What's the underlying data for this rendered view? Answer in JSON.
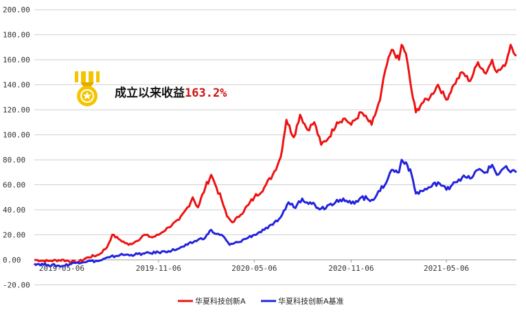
{
  "chart_data": {
    "type": "line",
    "title": "",
    "xlabel": "",
    "ylabel": "",
    "ylim": [
      -20,
      200
    ],
    "xlim": [
      "2019-03-15",
      "2021-09-16"
    ],
    "y_ticks": [
      "-20.00",
      "0.00",
      "20.00",
      "40.00",
      "60.00",
      "80.00",
      "100.00",
      "120.00",
      "140.00",
      "160.00",
      "180.00",
      "200.00"
    ],
    "x_ticks": [
      {
        "date": "2019-05-06",
        "label": "2019-05-06"
      },
      {
        "date": "2019-11-06",
        "label": "2019-11-06"
      },
      {
        "date": "2020-05-06",
        "label": "2020-05-06"
      },
      {
        "date": "2020-11-06",
        "label": "2020-11-06"
      },
      {
        "date": "2021-05-06",
        "label": "2021-05-06"
      }
    ],
    "grid": "horizontal",
    "legend_position": "bottom",
    "annotation": {
      "label": "成立以来收益",
      "value": "163.2%"
    },
    "series": [
      {
        "name": "华夏科技创新A",
        "color": "#ee1111",
        "points": [
          [
            "2019-03-15",
            0
          ],
          [
            "2019-04-10",
            -1
          ],
          [
            "2019-05-06",
            0
          ],
          [
            "2019-06-05",
            -2
          ],
          [
            "2019-06-25",
            2
          ],
          [
            "2019-07-15",
            4
          ],
          [
            "2019-07-31",
            10
          ],
          [
            "2019-08-10",
            20
          ],
          [
            "2019-08-25",
            16
          ],
          [
            "2019-09-10",
            12
          ],
          [
            "2019-09-25",
            15
          ],
          [
            "2019-10-10",
            20
          ],
          [
            "2019-10-25",
            18
          ],
          [
            "2019-11-06",
            20
          ],
          [
            "2019-11-25",
            26
          ],
          [
            "2019-12-15",
            32
          ],
          [
            "2019-12-31",
            42
          ],
          [
            "2020-01-10",
            50
          ],
          [
            "2020-01-20",
            42
          ],
          [
            "2020-02-03",
            58
          ],
          [
            "2020-02-14",
            68
          ],
          [
            "2020-02-21",
            61
          ],
          [
            "2020-03-05",
            48
          ],
          [
            "2020-03-15",
            35
          ],
          [
            "2020-03-25",
            30
          ],
          [
            "2020-04-10",
            36
          ],
          [
            "2020-04-25",
            44
          ],
          [
            "2020-05-06",
            50
          ],
          [
            "2020-05-25",
            58
          ],
          [
            "2020-06-10",
            68
          ],
          [
            "2020-06-25",
            82
          ],
          [
            "2020-07-06",
            112
          ],
          [
            "2020-07-20",
            98
          ],
          [
            "2020-08-01",
            116
          ],
          [
            "2020-08-15",
            104
          ],
          [
            "2020-08-28",
            110
          ],
          [
            "2020-09-10",
            92
          ],
          [
            "2020-09-25",
            98
          ],
          [
            "2020-10-10",
            110
          ],
          [
            "2020-10-25",
            113
          ],
          [
            "2020-11-06",
            108
          ],
          [
            "2020-11-25",
            118
          ],
          [
            "2020-12-15",
            108
          ],
          [
            "2020-12-31",
            128
          ],
          [
            "2021-01-10",
            152
          ],
          [
            "2021-01-22",
            168
          ],
          [
            "2021-02-05",
            160
          ],
          [
            "2021-02-10",
            172
          ],
          [
            "2021-02-18",
            165
          ],
          [
            "2021-03-01",
            135
          ],
          [
            "2021-03-09",
            118
          ],
          [
            "2021-03-20",
            125
          ],
          [
            "2021-04-05",
            130
          ],
          [
            "2021-04-20",
            140
          ],
          [
            "2021-05-06",
            128
          ],
          [
            "2021-05-20",
            140
          ],
          [
            "2021-06-05",
            150
          ],
          [
            "2021-06-20",
            143
          ],
          [
            "2021-07-05",
            158
          ],
          [
            "2021-07-20",
            149
          ],
          [
            "2021-08-01",
            160
          ],
          [
            "2021-08-10",
            150
          ],
          [
            "2021-08-25",
            155
          ],
          [
            "2021-09-05",
            172
          ],
          [
            "2021-09-16",
            163.2
          ]
        ]
      },
      {
        "name": "华夏科技创新A基准",
        "color": "#2222dd",
        "points": [
          [
            "2019-03-15",
            -3
          ],
          [
            "2019-04-10",
            -4
          ],
          [
            "2019-05-06",
            -5
          ],
          [
            "2019-06-05",
            -2
          ],
          [
            "2019-06-25",
            -1
          ],
          [
            "2019-07-15",
            -1
          ],
          [
            "2019-08-05",
            2
          ],
          [
            "2019-08-25",
            4
          ],
          [
            "2019-09-15",
            4
          ],
          [
            "2019-10-10",
            5
          ],
          [
            "2019-11-06",
            6
          ],
          [
            "2019-11-25",
            7
          ],
          [
            "2019-12-15",
            9
          ],
          [
            "2019-12-31",
            12
          ],
          [
            "2020-01-20",
            16
          ],
          [
            "2020-02-03",
            18
          ],
          [
            "2020-02-14",
            24
          ],
          [
            "2020-02-21",
            21
          ],
          [
            "2020-03-05",
            20
          ],
          [
            "2020-03-20",
            12
          ],
          [
            "2020-04-05",
            14
          ],
          [
            "2020-04-25",
            18
          ],
          [
            "2020-05-06",
            20
          ],
          [
            "2020-05-25",
            24
          ],
          [
            "2020-06-10",
            28
          ],
          [
            "2020-06-25",
            34
          ],
          [
            "2020-07-10",
            46
          ],
          [
            "2020-07-20",
            42
          ],
          [
            "2020-08-05",
            49
          ],
          [
            "2020-08-20",
            46
          ],
          [
            "2020-09-10",
            41
          ],
          [
            "2020-09-25",
            44
          ],
          [
            "2020-10-10",
            48
          ],
          [
            "2020-10-25",
            47
          ],
          [
            "2020-11-06",
            45
          ],
          [
            "2020-11-25",
            50
          ],
          [
            "2020-12-15",
            48
          ],
          [
            "2020-12-31",
            55
          ],
          [
            "2021-01-15",
            65
          ],
          [
            "2021-01-22",
            72
          ],
          [
            "2021-02-05",
            70
          ],
          [
            "2021-02-10",
            80
          ],
          [
            "2021-02-18",
            78
          ],
          [
            "2021-03-01",
            68
          ],
          [
            "2021-03-09",
            53
          ],
          [
            "2021-03-20",
            55
          ],
          [
            "2021-04-05",
            58
          ],
          [
            "2021-04-20",
            62
          ],
          [
            "2021-05-06",
            56
          ],
          [
            "2021-05-20",
            62
          ],
          [
            "2021-06-05",
            66
          ],
          [
            "2021-06-20",
            65
          ],
          [
            "2021-07-05",
            72
          ],
          [
            "2021-07-20",
            70
          ],
          [
            "2021-08-01",
            76
          ],
          [
            "2021-08-10",
            68
          ],
          [
            "2021-08-25",
            74
          ],
          [
            "2021-09-05",
            70
          ],
          [
            "2021-09-16",
            70
          ]
        ]
      }
    ]
  }
}
